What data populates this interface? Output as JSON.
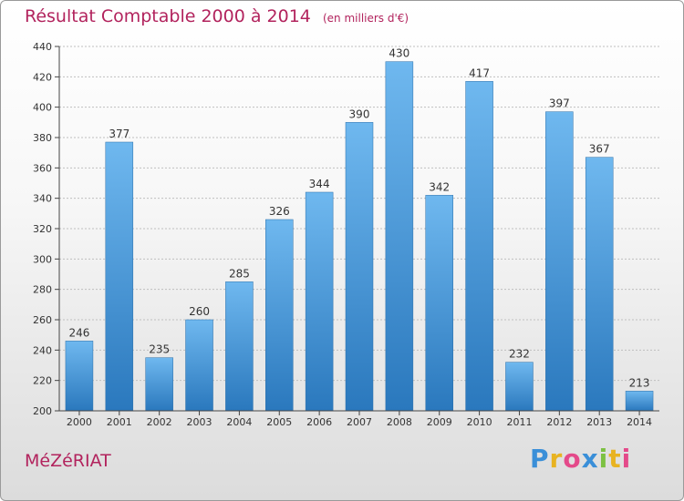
{
  "header": {
    "title": "Résultat Comptable 2000 à 2014",
    "subtitle": "(en milliers d'€)"
  },
  "footer": {
    "commune": "MéZéRIAT",
    "logo_letters": [
      "P",
      "r",
      "o",
      "x",
      "i",
      "t",
      "i"
    ],
    "logo_colors": [
      "#3a8fd8",
      "#e8b321",
      "#e44a8a",
      "#3a8fd8",
      "#7cc142",
      "#e8b321",
      "#e44a8a"
    ]
  },
  "chart_data": {
    "type": "bar",
    "title": "Résultat Comptable 2000 à 2014",
    "subtitle": "(en milliers d'€)",
    "xlabel": "",
    "ylabel": "",
    "categories": [
      "2000",
      "2001",
      "2002",
      "2003",
      "2004",
      "2005",
      "2006",
      "2007",
      "2008",
      "2009",
      "2010",
      "2011",
      "2012",
      "2013",
      "2014"
    ],
    "values": [
      246,
      377,
      235,
      260,
      285,
      326,
      344,
      390,
      430,
      342,
      417,
      232,
      397,
      367,
      213
    ],
    "ylim": [
      200,
      440
    ],
    "yticks": [
      200,
      220,
      240,
      260,
      280,
      300,
      320,
      340,
      360,
      380,
      400,
      420,
      440
    ],
    "grid": true,
    "colors": {
      "bar_light": "#6fb8ef",
      "bar_dark": "#2a78bd",
      "grid": "#bfbfbf"
    }
  }
}
